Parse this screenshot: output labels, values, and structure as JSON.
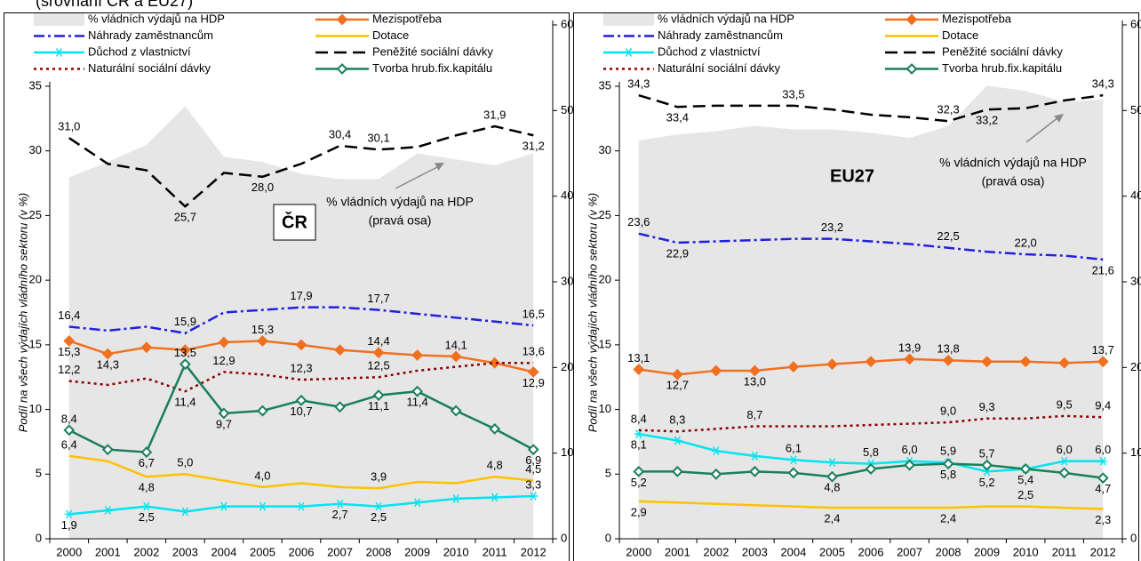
{
  "title": "(srovnání ČR a EU27)",
  "chart_data": [
    {
      "type": "line",
      "panel_label": "ČR",
      "y_label": "Podíl na všech výdajích vládního sektoru (v %)",
      "annotation": [
        "% vládních výdajů na HDP",
        "(pravá osa)"
      ],
      "categories": [
        "2000",
        "2001",
        "2002",
        "2003",
        "2004",
        "2005",
        "2006",
        "2007",
        "2008",
        "2009",
        "2010",
        "2011",
        "2012"
      ],
      "ylim": [
        0,
        35
      ],
      "yticks": [
        0,
        5,
        10,
        15,
        20,
        25,
        30,
        35
      ],
      "y2lim": [
        0,
        60
      ],
      "y2ticks": [
        0,
        10,
        20,
        30,
        40,
        50,
        60
      ],
      "series": [
        {
          "name": "% vládních výdajů na HDP",
          "color": "#e6e6e6",
          "style": "area",
          "axis": "y2",
          "values": [
            42.2,
            44.0,
            46.0,
            50.5,
            44.6,
            44.0,
            42.6,
            42.0,
            42.0,
            45.0,
            44.3,
            43.6,
            45.0
          ]
        },
        {
          "name": "Mezispotřeba",
          "color": "#f07020",
          "style": "diamond",
          "values": [
            15.3,
            14.3,
            14.8,
            14.6,
            15.2,
            15.3,
            15.0,
            14.6,
            14.4,
            14.2,
            14.1,
            13.6,
            12.9
          ],
          "value_labels": [
            "15,3",
            "14,3",
            null,
            null,
            null,
            "15,3",
            null,
            null,
            "14,4",
            null,
            "14,1",
            null,
            "12,9"
          ]
        },
        {
          "name": "Náhrady zaměstnancům",
          "color": "#2020e0",
          "style": "dashdot",
          "values": [
            16.4,
            16.1,
            16.4,
            15.9,
            17.5,
            17.7,
            17.9,
            17.9,
            17.7,
            17.4,
            17.1,
            16.8,
            16.5
          ],
          "value_labels": [
            "16,4",
            null,
            null,
            "15,9",
            null,
            null,
            "17,9",
            null,
            "17,7",
            null,
            null,
            null,
            "16,5"
          ]
        },
        {
          "name": "Dotace",
          "color": "#ffc000",
          "style": "solid",
          "values": [
            6.4,
            6.0,
            4.8,
            5.0,
            4.5,
            4.0,
            4.3,
            4.0,
            3.9,
            4.4,
            4.3,
            4.8,
            4.5
          ],
          "value_labels": [
            "6,4",
            null,
            "4,8",
            "5,0",
            null,
            "4,0",
            null,
            null,
            "3,9",
            null,
            null,
            "4,8",
            "4,5"
          ]
        },
        {
          "name": "Důchod z vlastnictví",
          "color": "#00e5ee",
          "style": "star",
          "values": [
            1.9,
            2.2,
            2.5,
            2.1,
            2.5,
            2.5,
            2.5,
            2.7,
            2.5,
            2.8,
            3.1,
            3.2,
            3.3
          ],
          "value_labels": [
            "1,9",
            null,
            "2,5",
            null,
            null,
            null,
            null,
            "2,7",
            "2,5",
            null,
            null,
            null,
            "3,3"
          ]
        },
        {
          "name": "Peněžité sociální dávky",
          "color": "#000000",
          "style": "dashed",
          "values": [
            31.0,
            29.0,
            28.5,
            25.7,
            28.3,
            28.0,
            29.0,
            30.4,
            30.1,
            30.3,
            31.2,
            31.9,
            31.2
          ],
          "value_labels": [
            "31,0",
            null,
            null,
            "25,7",
            null,
            "28,0",
            null,
            "30,4",
            "30,1",
            null,
            null,
            "31,9",
            "31,2"
          ]
        },
        {
          "name": "Naturální sociální dávky",
          "color": "#8b0000",
          "style": "dotted",
          "values": [
            12.2,
            11.9,
            12.4,
            11.4,
            12.9,
            12.7,
            12.3,
            12.4,
            12.5,
            13.0,
            13.3,
            13.6,
            13.6
          ],
          "value_labels": [
            "12,2",
            null,
            null,
            "11,4",
            "12,9",
            null,
            "12,3",
            null,
            "12,5",
            null,
            null,
            null,
            "13,6"
          ]
        },
        {
          "name": "Tvorba hrub.fix.kapitálu",
          "color": "#1a7f5a",
          "style": "diamond-open",
          "values": [
            8.4,
            6.9,
            6.7,
            13.5,
            9.7,
            9.9,
            10.7,
            10.2,
            11.1,
            11.4,
            9.9,
            8.5,
            6.9
          ],
          "value_labels": [
            "8,4",
            null,
            "6,7",
            "13,5",
            "9,7",
            null,
            "10,7",
            null,
            "11,1",
            "11,4",
            null,
            null,
            "6,9"
          ]
        }
      ]
    },
    {
      "type": "line",
      "panel_label": "EU27",
      "y_label": "Podíl na všech výdajích vládního sektoru (v %)",
      "annotation": [
        "% vládních výdajů na HDP",
        "(pravá osa)"
      ],
      "categories": [
        "2000",
        "2001",
        "2002",
        "2003",
        "2004",
        "2005",
        "2006",
        "2007",
        "2008",
        "2009",
        "2010",
        "2011",
        "2012"
      ],
      "ylim": [
        0,
        35
      ],
      "yticks": [
        0,
        5,
        10,
        15,
        20,
        25,
        30,
        35
      ],
      "y2lim": [
        0,
        60
      ],
      "y2ticks": [
        0,
        10,
        20,
        30,
        40,
        50,
        60
      ],
      "series": [
        {
          "name": "% vládních výdajů na HDP",
          "color": "#e6e6e6",
          "style": "area",
          "axis": "y2",
          "values": [
            46.5,
            47.2,
            47.6,
            48.2,
            47.8,
            47.8,
            47.4,
            46.8,
            48.2,
            52.9,
            52.3,
            51.0,
            51.3
          ]
        },
        {
          "name": "Mezispotřeba",
          "color": "#f07020",
          "style": "diamond",
          "values": [
            13.1,
            12.7,
            13.0,
            13.0,
            13.3,
            13.5,
            13.7,
            13.9,
            13.8,
            13.7,
            13.7,
            13.6,
            13.7
          ],
          "value_labels": [
            "13,1",
            "12,7",
            null,
            "13,0",
            null,
            null,
            null,
            "13,9",
            "13,8",
            null,
            null,
            null,
            "13,7"
          ]
        },
        {
          "name": "Náhrady zaměstnancům",
          "color": "#2020e0",
          "style": "dashdot",
          "values": [
            23.6,
            22.9,
            23.0,
            23.1,
            23.2,
            23.2,
            23.0,
            22.8,
            22.5,
            22.2,
            22.0,
            21.9,
            21.6
          ],
          "value_labels": [
            "23,6",
            "22,9",
            null,
            null,
            null,
            "23,2",
            null,
            null,
            "22,5",
            null,
            "22,0",
            null,
            "21,6"
          ]
        },
        {
          "name": "Dotace",
          "color": "#ffc000",
          "style": "solid",
          "values": [
            2.9,
            2.8,
            2.7,
            2.6,
            2.5,
            2.4,
            2.4,
            2.4,
            2.4,
            2.5,
            2.5,
            2.4,
            2.3
          ],
          "value_labels": [
            "2,9",
            null,
            null,
            null,
            null,
            "2,4",
            null,
            null,
            "2,4",
            null,
            "2,5",
            null,
            "2,3"
          ]
        },
        {
          "name": "Důchod z vlastnictví",
          "color": "#00e5ee",
          "style": "star",
          "values": [
            8.1,
            7.6,
            6.8,
            6.4,
            6.1,
            5.9,
            5.8,
            6.0,
            5.9,
            5.2,
            5.4,
            6.0,
            6.0
          ],
          "value_labels": [
            "8,1",
            null,
            null,
            null,
            "6,1",
            null,
            "5,8",
            "6,0",
            "5,9",
            "5,2",
            null,
            "6,0",
            "6,0"
          ]
        },
        {
          "name": "Peněžité sociální dávky",
          "color": "#000000",
          "style": "dashed",
          "values": [
            34.3,
            33.4,
            33.5,
            33.5,
            33.5,
            33.2,
            32.8,
            32.6,
            32.3,
            33.2,
            33.3,
            33.9,
            34.3
          ],
          "value_labels": [
            "34,3",
            "33,4",
            null,
            null,
            "33,5",
            null,
            null,
            null,
            "32,3",
            "33,2",
            null,
            null,
            "34,3"
          ]
        },
        {
          "name": "Naturální sociální dávky",
          "color": "#8b0000",
          "style": "dotted",
          "values": [
            8.4,
            8.3,
            8.5,
            8.7,
            8.7,
            8.7,
            8.8,
            8.9,
            9.0,
            9.3,
            9.3,
            9.5,
            9.4
          ],
          "value_labels": [
            "8,4",
            "8,3",
            null,
            "8,7",
            null,
            null,
            null,
            null,
            "9,0",
            "9,3",
            null,
            "9,5",
            "9,4"
          ]
        },
        {
          "name": "Tvorba hrub.fix.kapitálu",
          "color": "#1a7f5a",
          "style": "diamond-open",
          "values": [
            5.2,
            5.2,
            5.0,
            5.2,
            5.1,
            4.8,
            5.4,
            5.7,
            5.8,
            5.7,
            5.4,
            5.1,
            4.7
          ],
          "value_labels": [
            "5,2",
            null,
            null,
            null,
            null,
            "4,8",
            null,
            null,
            "5,8",
            "5,7",
            "5,4",
            null,
            "4,7"
          ]
        }
      ]
    }
  ]
}
